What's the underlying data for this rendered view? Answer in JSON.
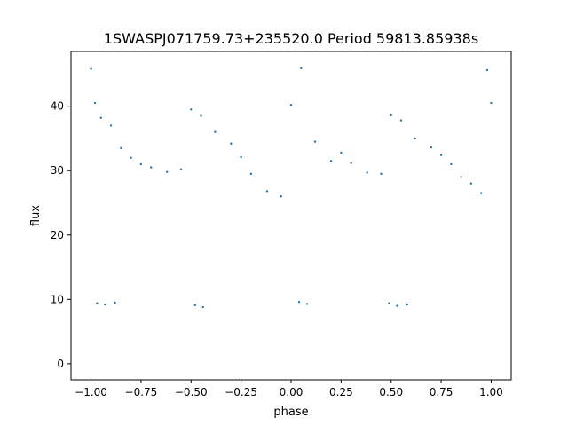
{
  "chart_data": {
    "type": "scatter",
    "title": "1SWASPJ071759.73+235520.0 Period 59813.85938s",
    "xlabel": "phase",
    "ylabel": "flux",
    "xlim": [
      -1.1,
      1.1
    ],
    "ylim": [
      -2.5,
      48.5
    ],
    "xticks": [
      -1.0,
      -0.75,
      -0.5,
      -0.25,
      0.0,
      0.25,
      0.5,
      0.75,
      1.0
    ],
    "xtick_labels": [
      "−1.00",
      "−0.75",
      "−0.50",
      "−0.25",
      "0.00",
      "0.25",
      "0.50",
      "0.75",
      "1.00"
    ],
    "yticks": [
      0,
      10,
      20,
      30,
      40
    ],
    "ytick_labels": [
      "0",
      "10",
      "20",
      "30",
      "40"
    ],
    "grid": false,
    "legend": "none",
    "marker_color": "#1f77b4",
    "series": [
      {
        "x": [
          -1.0,
          -0.98,
          -0.95,
          -0.9,
          -0.85,
          -0.8,
          -0.75,
          -0.7,
          -0.62,
          -0.55,
          -0.5,
          -0.45,
          -0.38,
          -0.3,
          -0.25,
          -0.2,
          -0.12,
          -0.05,
          0.0,
          0.05,
          0.12,
          0.2,
          0.25,
          0.3,
          0.38,
          0.45,
          0.5,
          0.55,
          0.62,
          0.7,
          0.75,
          0.8,
          0.85,
          0.9,
          0.95,
          0.98,
          1.0
        ],
        "y": [
          45.8,
          40.5,
          38.2,
          37.0,
          33.5,
          32.0,
          31.0,
          30.5,
          29.8,
          30.2,
          39.5,
          38.5,
          36.0,
          34.2,
          32.1,
          29.5,
          26.8,
          26.0,
          40.2,
          45.9,
          34.5,
          31.5,
          32.8,
          31.2,
          29.7,
          29.5,
          38.6,
          37.8,
          35.0,
          33.6,
          32.4,
          31.0,
          29.0,
          28.0,
          26.5,
          45.6,
          40.5
        ]
      },
      {
        "x": [
          -0.97,
          -0.93,
          -0.88,
          -0.48,
          -0.44,
          0.04,
          0.08,
          0.49,
          0.53,
          0.58
        ],
        "y": [
          9.4,
          9.2,
          9.5,
          9.1,
          8.8,
          9.6,
          9.3,
          9.4,
          9.0,
          9.2
        ]
      }
    ]
  }
}
